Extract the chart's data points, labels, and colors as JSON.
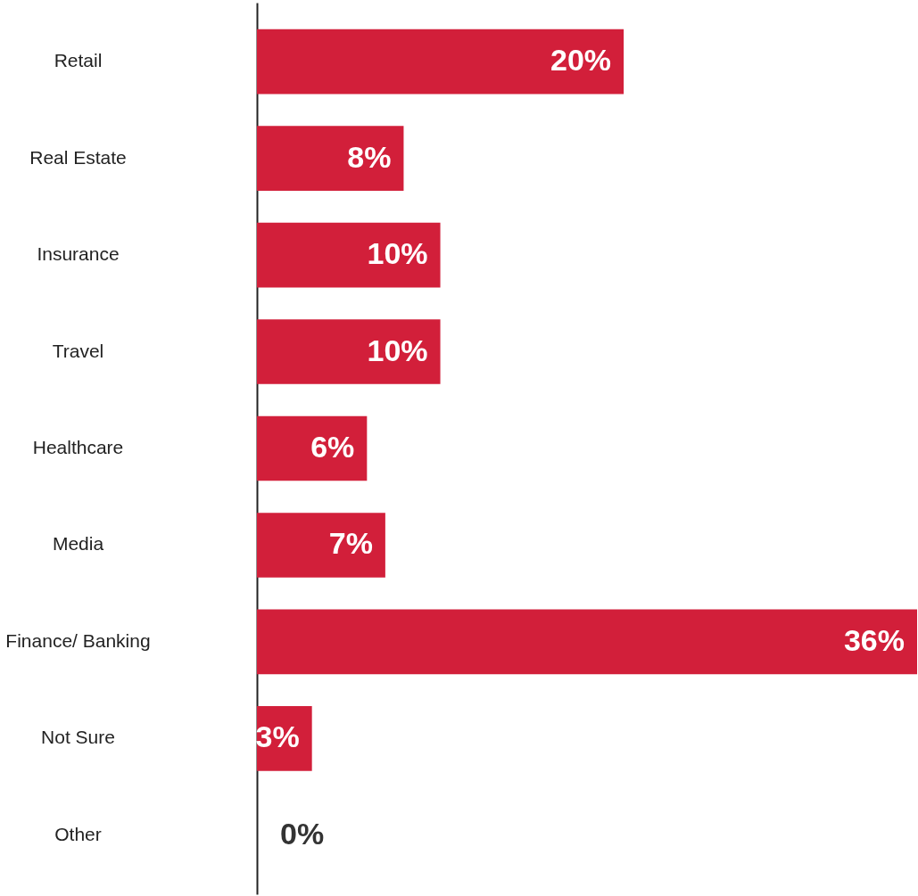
{
  "chart_data": {
    "type": "bar",
    "orientation": "horizontal",
    "categories": [
      "Retail",
      "Real Estate",
      "Insurance",
      "Travel",
      "Healthcare",
      "Media",
      "Finance/ Banking",
      "Not Sure",
      "Other"
    ],
    "values": [
      20,
      8,
      10,
      10,
      6,
      7,
      36,
      3,
      0
    ],
    "value_labels": [
      "20%",
      "8%",
      "10%",
      "10%",
      "6%",
      "7%",
      "36%",
      "3%",
      "0%"
    ],
    "color": "#d21f3a",
    "xlim": [
      0,
      36
    ]
  }
}
